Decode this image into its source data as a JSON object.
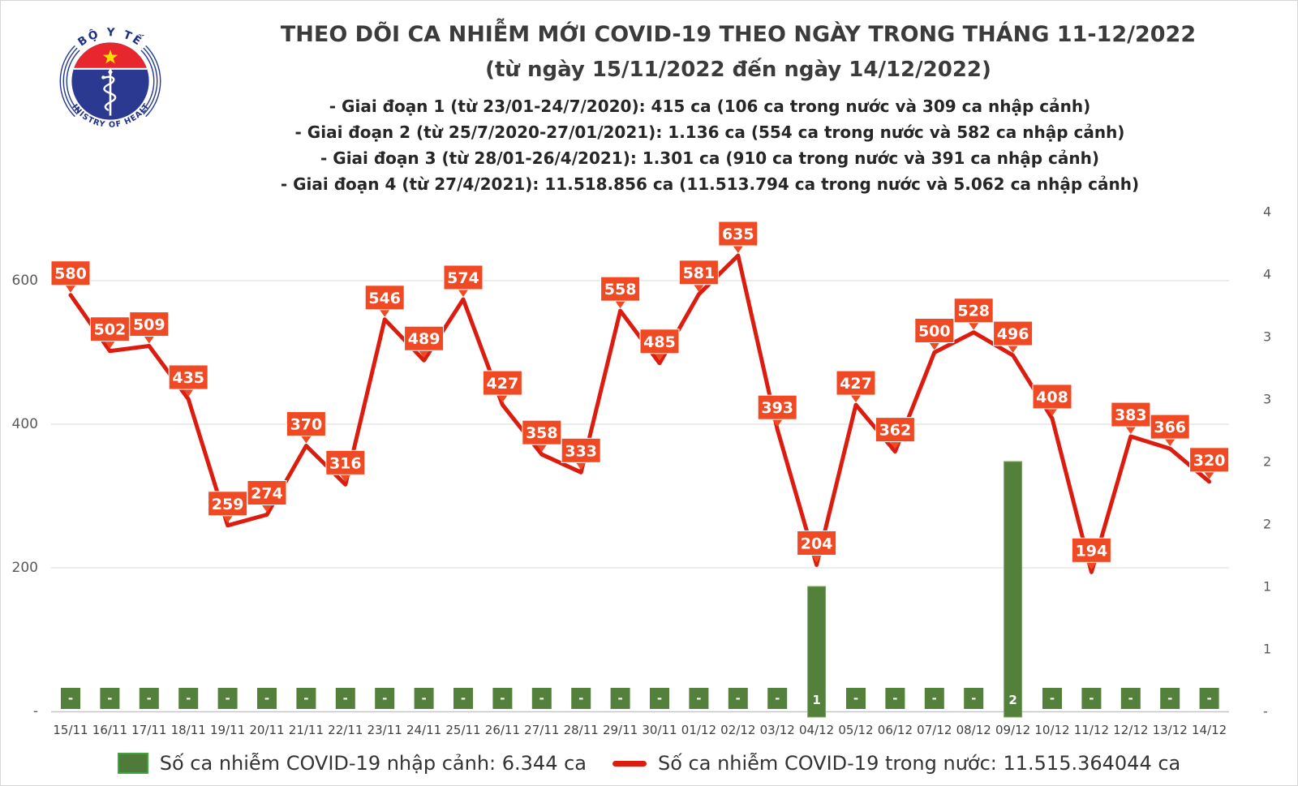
{
  "logo": {
    "top_text": "BỘ Y TẾ",
    "bottom_text": "MINISTRY OF HEALTH"
  },
  "header": {
    "title": "THEO DÕI CA NHIỄM MỚI COVID-19 THEO NGÀY TRONG THÁNG 11-12/2022",
    "subtitle": "(từ ngày 15/11/2022 đến ngày 14/12/2022)",
    "phases": [
      "- Giai đoạn 1 (từ 23/01-24/7/2020): 415 ca (106 ca trong nước và 309 ca nhập cảnh)",
      "- Giai đoạn 2 (từ 25/7/2020-27/01/2021): 1.136 ca (554 ca trong nước và 582 ca nhập cảnh)",
      "- Giai đoạn 3 (từ 28/01-26/4/2021): 1.301 ca (910 ca trong nước và 391 ca nhập cảnh)",
      "- Giai đoạn 4 (từ 27/4/2021): 11.518.856 ca (11.513.794 ca trong nước và 5.062 ca nhập cảnh)"
    ]
  },
  "chart_data": {
    "type": "line+bar combo",
    "categories": [
      "15/11",
      "16/11",
      "17/11",
      "18/11",
      "19/11",
      "20/11",
      "21/11",
      "22/11",
      "23/11",
      "24/11",
      "25/11",
      "26/11",
      "27/11",
      "28/11",
      "29/11",
      "30/11",
      "01/12",
      "02/12",
      "03/12",
      "04/12",
      "05/12",
      "06/12",
      "07/12",
      "08/12",
      "09/12",
      "10/12",
      "11/12",
      "12/12",
      "13/12",
      "14/12"
    ],
    "series": [
      {
        "name": "Số ca nhiễm COVID-19 nhập cảnh",
        "type": "bar",
        "axis": "right",
        "values": [
          0,
          0,
          0,
          0,
          0,
          0,
          0,
          0,
          0,
          0,
          0,
          0,
          0,
          0,
          0,
          0,
          0,
          0,
          0,
          1,
          0,
          0,
          0,
          0,
          2,
          0,
          0,
          0,
          0,
          0
        ],
        "labels": [
          "-",
          "-",
          "-",
          "-",
          "-",
          "-",
          "-",
          "-",
          "-",
          "-",
          "-",
          "-",
          "-",
          "-",
          "-",
          "-",
          "-",
          "-",
          "-",
          "1",
          "-",
          "-",
          "-",
          "-",
          "2",
          "-",
          "-",
          "-",
          "-",
          "-"
        ]
      },
      {
        "name": "Số ca nhiễm COVID-19 trong nước",
        "type": "line",
        "axis": "left",
        "values": [
          580,
          502,
          509,
          435,
          259,
          274,
          370,
          316,
          546,
          489,
          574,
          427,
          358,
          333,
          558,
          485,
          581,
          635,
          393,
          204,
          427,
          362,
          500,
          528,
          496,
          408,
          194,
          383,
          366,
          320
        ]
      }
    ],
    "left_axis": {
      "range": [
        0,
        700
      ],
      "ticks": [
        {
          "value": 0,
          "label": "-"
        },
        {
          "value": 200,
          "label": "200"
        },
        {
          "value": 400,
          "label": "400"
        },
        {
          "value": 600,
          "label": "600"
        }
      ]
    },
    "right_axis": {
      "range": [
        0,
        4
      ],
      "ticks": [
        {
          "value": 0,
          "label": "-"
        },
        {
          "value": 0.5,
          "label": "1"
        },
        {
          "value": 1,
          "label": "1"
        },
        {
          "value": 1.5,
          "label": "2"
        },
        {
          "value": 2,
          "label": "2"
        },
        {
          "value": 2.5,
          "label": "3"
        },
        {
          "value": 3,
          "label": "3"
        },
        {
          "value": 3.5,
          "label": "4"
        },
        {
          "value": 4,
          "label": "4"
        }
      ]
    },
    "grid": "horizontal",
    "legend_position": "bottom",
    "legend": [
      {
        "label": "Số ca nhiễm COVID-19 nhập cảnh: 6.344 ca",
        "color": "#4e7a3a",
        "marker": "bar"
      },
      {
        "label": "Số ca nhiễm COVID-19 trong nước: 11.515.364044 ca",
        "color": "#dd1c10",
        "marker": "line"
      }
    ],
    "colors": {
      "line": "#dd1c10",
      "data_label_box": "#ef4a23",
      "data_label_text": "#ffffff",
      "bar": "#53803a",
      "bar_border": "#7fae4a",
      "gridline": "#d9d9d9",
      "axis_text": "#595959",
      "date_text": "#3f3f3f"
    }
  }
}
